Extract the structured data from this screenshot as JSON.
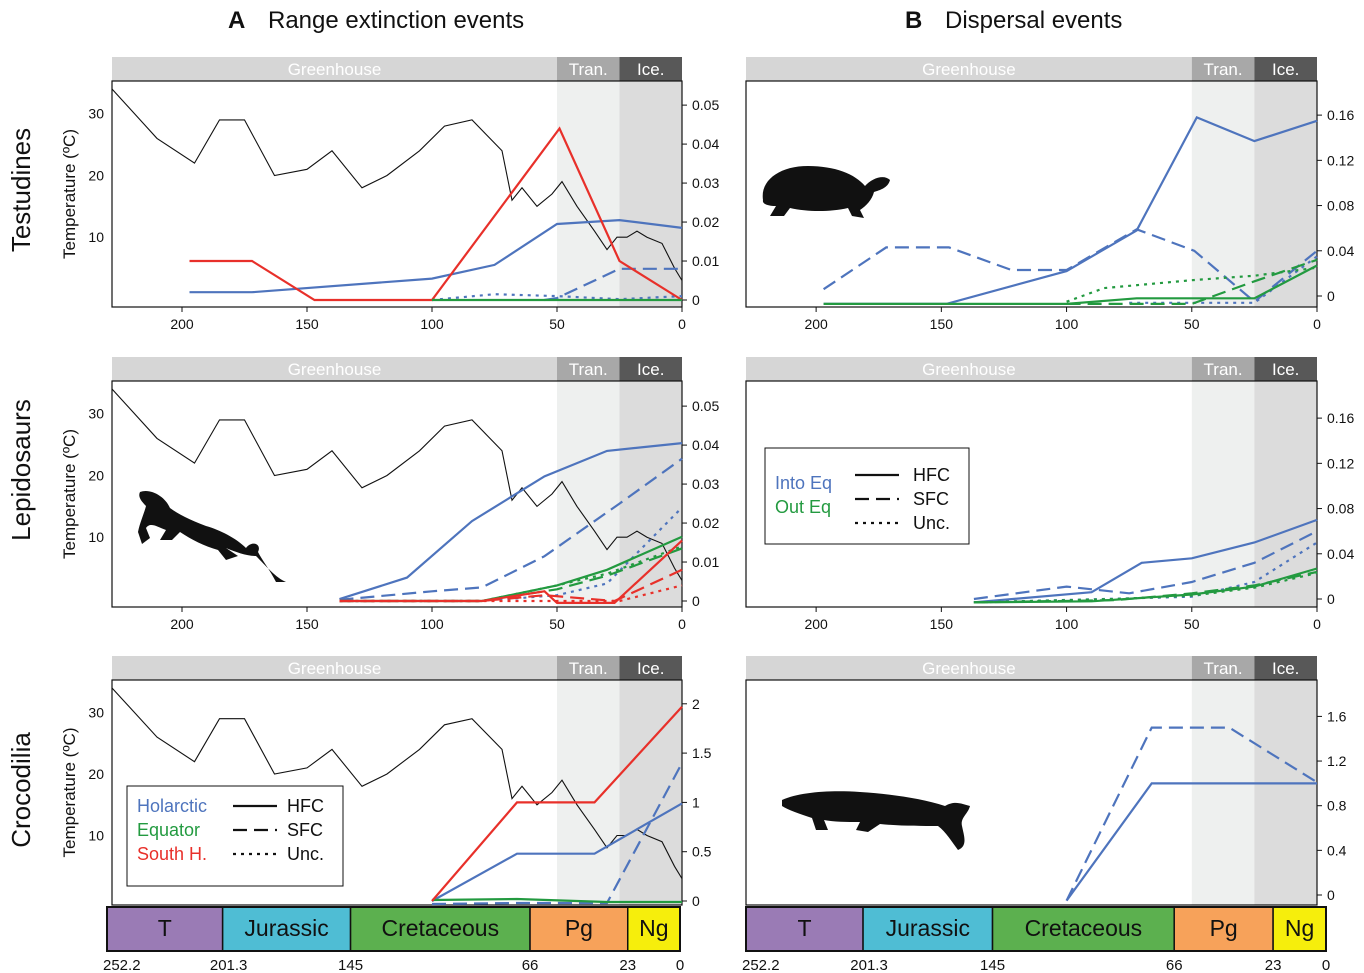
{
  "headers": {
    "a_letter": "A",
    "a_title": "Range extinction events",
    "b_letter": "B",
    "b_title": "Dispersal events"
  },
  "rows": [
    "Testudines",
    "Lepidosaurs",
    "Crocodilia"
  ],
  "temperature_axis": {
    "label": "Temperature (ºC)",
    "ticks": [
      10,
      20,
      30
    ]
  },
  "climate_bands": [
    "Greenhouse",
    "Tran.",
    "Ice."
  ],
  "x_ticks_top": [
    200,
    150,
    100,
    50,
    0
  ],
  "geologic_periods": [
    "T",
    "Jurassic",
    "Cretaceous",
    "Pg",
    "Ng"
  ],
  "period_boundaries": [
    "252.2",
    "201.3",
    "145",
    "66",
    "23",
    "0"
  ],
  "legend_a": {
    "regions": [
      "Holarctic",
      "Equator",
      "South H."
    ],
    "styles": [
      "HFC",
      "SFC",
      "Unc."
    ]
  },
  "legend_b": {
    "directions": [
      "Into Eq",
      "Out Eq"
    ],
    "styles": [
      "HFC",
      "SFC",
      "Unc."
    ]
  },
  "colors": {
    "holarctic": "#4e74bd",
    "equator": "#239a40",
    "south": "#e8302a",
    "band_greenhouse": "#d6d6d6",
    "band_tran": "#a8a8a8",
    "band_ice": "#585858",
    "period_T": "#9a7bb5",
    "period_J": "#4fbdd4",
    "period_K": "#5cb04f",
    "period_Pg": "#f7a25a",
    "period_Ng": "#f6ee0c"
  },
  "chart_data": [
    {
      "panel": "A-Testudines",
      "type": "line",
      "ylabel_left": "Temperature (ºC)",
      "yticks_right": [
        "0",
        "0.01",
        "0.02",
        "0.03",
        "0.04",
        "0.05"
      ],
      "ylim_right": [
        0,
        0.05
      ],
      "temperature": [
        [
          228,
          34
        ],
        [
          210,
          26
        ],
        [
          195,
          22
        ],
        [
          185,
          29
        ],
        [
          175,
          29
        ],
        [
          163,
          20
        ],
        [
          150,
          21
        ],
        [
          140,
          24
        ],
        [
          128,
          18
        ],
        [
          118,
          20
        ],
        [
          105,
          24
        ],
        [
          95,
          28
        ],
        [
          84,
          29
        ],
        [
          72,
          24
        ],
        [
          68,
          16
        ],
        [
          64,
          18
        ],
        [
          58,
          15
        ],
        [
          52,
          17
        ],
        [
          48,
          19
        ],
        [
          42,
          15
        ],
        [
          35,
          11
        ],
        [
          30,
          8
        ],
        [
          26,
          10
        ],
        [
          22,
          10
        ],
        [
          18,
          11
        ],
        [
          14,
          10
        ],
        [
          8,
          9
        ],
        [
          3,
          5
        ],
        [
          0,
          3
        ]
      ],
      "series": [
        {
          "group": "Holarctic",
          "style": "HFC",
          "points": [
            [
              197,
              0.002
            ],
            [
              172,
              0.002
            ],
            [
              100,
              0.0055
            ],
            [
              75,
              0.009
            ],
            [
              50,
              0.0195
            ],
            [
              25,
              0.0205
            ],
            [
              0,
              0.0185
            ]
          ]
        },
        {
          "group": "Holarctic",
          "style": "SFC",
          "points": [
            [
              55,
              0
            ],
            [
              50,
              0.0005
            ],
            [
              25,
              0.008
            ],
            [
              0,
              0.008
            ]
          ]
        },
        {
          "group": "Holarctic",
          "style": "Unc.",
          "points": [
            [
              100,
              0
            ],
            [
              75,
              0.0015
            ],
            [
              50,
              0.001
            ],
            [
              25,
              0.0002
            ],
            [
              0,
              0.001
            ]
          ]
        },
        {
          "group": "South H.",
          "style": "HFC",
          "points": [
            [
              197,
              0.01
            ],
            [
              172,
              0.01
            ],
            [
              147,
              0
            ],
            [
              100,
              0
            ],
            [
              49,
              0.044
            ],
            [
              25,
              0.01
            ],
            [
              0,
              0
            ]
          ]
        },
        {
          "group": "Equator",
          "style": "HFC",
          "points": [
            [
              100,
              0
            ],
            [
              0,
              0
            ]
          ]
        }
      ]
    },
    {
      "panel": "B-Testudines",
      "type": "line",
      "yticks_right": [
        "0",
        "0.04",
        "0.08",
        "0.12",
        "0.16"
      ],
      "ylim_right": [
        0,
        0.16
      ],
      "series": [
        {
          "group": "Into Eq",
          "style": "HFC",
          "points": [
            [
              197,
              -0.007
            ],
            [
              148,
              -0.007
            ],
            [
              100,
              0.022
            ],
            [
              72,
              0.058
            ],
            [
              48,
              0.158
            ],
            [
              25,
              0.137
            ],
            [
              0,
              0.155
            ]
          ]
        },
        {
          "group": "Into Eq",
          "style": "SFC",
          "points": [
            [
              197,
              0.006
            ],
            [
              172,
              0.043
            ],
            [
              147,
              0.043
            ],
            [
              122,
              0.023
            ],
            [
              100,
              0.023
            ],
            [
              72,
              0.059
            ],
            [
              49,
              0.04
            ],
            [
              25,
              -0.005
            ],
            [
              0,
              0.04
            ]
          ]
        },
        {
          "group": "Into Eq",
          "style": "Unc.",
          "points": [
            [
              75,
              -0.006
            ],
            [
              50,
              -0.006
            ],
            [
              25,
              -0.006
            ],
            [
              0,
              0.035
            ]
          ]
        },
        {
          "group": "Out Eq",
          "style": "HFC",
          "points": [
            [
              197,
              -0.007
            ],
            [
              100,
              -0.007
            ],
            [
              72,
              -0.002
            ],
            [
              25,
              -0.002
            ],
            [
              0,
              0.027
            ]
          ]
        },
        {
          "group": "Out Eq",
          "style": "SFC",
          "points": [
            [
              100,
              -0.007
            ],
            [
              50,
              -0.007
            ],
            [
              25,
              0.013
            ],
            [
              0,
              0.032
            ]
          ]
        },
        {
          "group": "Out Eq",
          "style": "Unc.",
          "points": [
            [
              100,
              -0.005
            ],
            [
              85,
              0.007
            ],
            [
              50,
              0.014
            ],
            [
              25,
              0.018
            ],
            [
              0,
              0.025
            ]
          ]
        }
      ]
    },
    {
      "panel": "A-Lepidosaurs",
      "type": "line",
      "yticks_right": [
        "0",
        "0.01",
        "0.02",
        "0.03",
        "0.04",
        "0.05"
      ],
      "ylim_right": [
        0,
        0.05
      ],
      "series": [
        {
          "group": "Holarctic",
          "style": "HFC",
          "points": [
            [
              137,
              0.0005
            ],
            [
              110,
              0.006
            ],
            [
              84,
              0.0205
            ],
            [
              55,
              0.032
            ],
            [
              30,
              0.0385
            ],
            [
              0,
              0.0405
            ]
          ]
        },
        {
          "group": "Holarctic",
          "style": "SFC",
          "points": [
            [
              137,
              0.0003
            ],
            [
              100,
              0.0025
            ],
            [
              80,
              0.0035
            ],
            [
              55,
              0.0115
            ],
            [
              25,
              0.025
            ],
            [
              0,
              0.0365
            ]
          ]
        },
        {
          "group": "Holarctic",
          "style": "Unc.",
          "points": [
            [
              137,
              0
            ],
            [
              80,
              0
            ],
            [
              50,
              0.0015
            ],
            [
              30,
              0.0045
            ],
            [
              0,
              0.024
            ]
          ]
        },
        {
          "group": "Equator",
          "style": "HFC",
          "points": [
            [
              137,
              0
            ],
            [
              80,
              0
            ],
            [
              50,
              0.004
            ],
            [
              30,
              0.008
            ],
            [
              0,
              0.0165
            ]
          ]
        },
        {
          "group": "Equator",
          "style": "SFC",
          "points": [
            [
              137,
              0
            ],
            [
              80,
              0
            ],
            [
              50,
              0.003
            ],
            [
              30,
              0.0065
            ],
            [
              0,
              0.0135
            ]
          ]
        },
        {
          "group": "Equator",
          "style": "Unc.",
          "points": [
            [
              137,
              0
            ],
            [
              80,
              0
            ],
            [
              50,
              0.004
            ],
            [
              30,
              0.007
            ],
            [
              0,
              0.014
            ]
          ]
        },
        {
          "group": "South H.",
          "style": "HFC",
          "points": [
            [
              137,
              0
            ],
            [
              80,
              0
            ],
            [
              55,
              0.0025
            ],
            [
              50,
              -0.0005
            ],
            [
              27,
              -0.0005
            ],
            [
              0,
              0.0155
            ]
          ]
        },
        {
          "group": "South H.",
          "style": "SFC",
          "points": [
            [
              137,
              0
            ],
            [
              80,
              0
            ],
            [
              55,
              0.0015
            ],
            [
              27,
              0
            ],
            [
              0,
              0.008
            ]
          ]
        },
        {
          "group": "South H.",
          "style": "Unc.",
          "points": [
            [
              137,
              0
            ],
            [
              80,
              0
            ],
            [
              25,
              0
            ],
            [
              0,
              0.004
            ]
          ]
        }
      ]
    },
    {
      "panel": "B-Lepidosaurs",
      "type": "line",
      "yticks_right": [
        "0",
        "0.04",
        "0.08",
        "0.12",
        "0.16"
      ],
      "ylim_right": [
        0,
        0.16
      ],
      "series": [
        {
          "group": "Into Eq",
          "style": "HFC",
          "points": [
            [
              137,
              -0.003
            ],
            [
              90,
              0.006
            ],
            [
              70,
              0.032
            ],
            [
              50,
              0.036
            ],
            [
              25,
              0.05
            ],
            [
              0,
              0.07
            ]
          ]
        },
        {
          "group": "Into Eq",
          "style": "SFC",
          "points": [
            [
              137,
              0
            ],
            [
              100,
              0.011
            ],
            [
              75,
              0.005
            ],
            [
              50,
              0.015
            ],
            [
              25,
              0.032
            ],
            [
              0,
              0.06
            ]
          ]
        },
        {
          "group": "Into Eq",
          "style": "Unc.",
          "points": [
            [
              137,
              -0.003
            ],
            [
              50,
              0.002
            ],
            [
              25,
              0.015
            ],
            [
              0,
              0.05
            ]
          ]
        },
        {
          "group": "Out Eq",
          "style": "HFC",
          "points": [
            [
              137,
              -0.003
            ],
            [
              90,
              -0.002
            ],
            [
              50,
              0.004
            ],
            [
              25,
              0.011
            ],
            [
              0,
              0.027
            ]
          ]
        },
        {
          "group": "Out Eq",
          "style": "SFC",
          "points": [
            [
              137,
              -0.003
            ],
            [
              80,
              -0.001
            ],
            [
              50,
              0.005
            ],
            [
              25,
              0.012
            ],
            [
              0,
              0.024
            ]
          ]
        },
        {
          "group": "Out Eq",
          "style": "Unc.",
          "points": [
            [
              137,
              -0.003
            ],
            [
              80,
              0
            ],
            [
              50,
              0.003
            ],
            [
              25,
              0.01
            ],
            [
              0,
              0.023
            ]
          ]
        }
      ]
    },
    {
      "panel": "A-Crocodilia",
      "type": "line",
      "yticks_right": [
        "0",
        "0.5",
        "1",
        "1.5",
        "2"
      ],
      "ylim_right": [
        0,
        2
      ],
      "series": [
        {
          "group": "Holarctic",
          "style": "HFC",
          "points": [
            [
              100,
              0
            ],
            [
              66,
              0.48
            ],
            [
              35,
              0.48
            ],
            [
              0,
              0.99
            ]
          ]
        },
        {
          "group": "Holarctic",
          "style": "SFC",
          "points": [
            [
              100,
              -0.03
            ],
            [
              66,
              -0.02
            ],
            [
              30,
              -0.02
            ],
            [
              0,
              1.4
            ]
          ]
        },
        {
          "group": "Equator",
          "style": "HFC",
          "points": [
            [
              100,
              0.01
            ],
            [
              66,
              0.02
            ],
            [
              30,
              -0.01
            ],
            [
              0,
              -0.01
            ]
          ]
        },
        {
          "group": "South H.",
          "style": "HFC",
          "points": [
            [
              100,
              0
            ],
            [
              66,
              1
            ],
            [
              35,
              1
            ],
            [
              0,
              1.97
            ]
          ]
        }
      ]
    },
    {
      "panel": "B-Crocodilia",
      "type": "line",
      "yticks_right": [
        "0",
        "0.4",
        "0.8",
        "1.2",
        "1.6"
      ],
      "ylim_right": [
        0,
        1.6
      ],
      "series": [
        {
          "group": "Into Eq",
          "style": "HFC",
          "points": [
            [
              100,
              -0.05
            ],
            [
              66,
              1
            ],
            [
              25,
              1
            ],
            [
              0,
              1
            ]
          ]
        },
        {
          "group": "Into Eq",
          "style": "SFC",
          "points": [
            [
              100,
              -0.05
            ],
            [
              66,
              1.5
            ],
            [
              35,
              1.5
            ],
            [
              0,
              1.01
            ]
          ]
        }
      ]
    }
  ]
}
